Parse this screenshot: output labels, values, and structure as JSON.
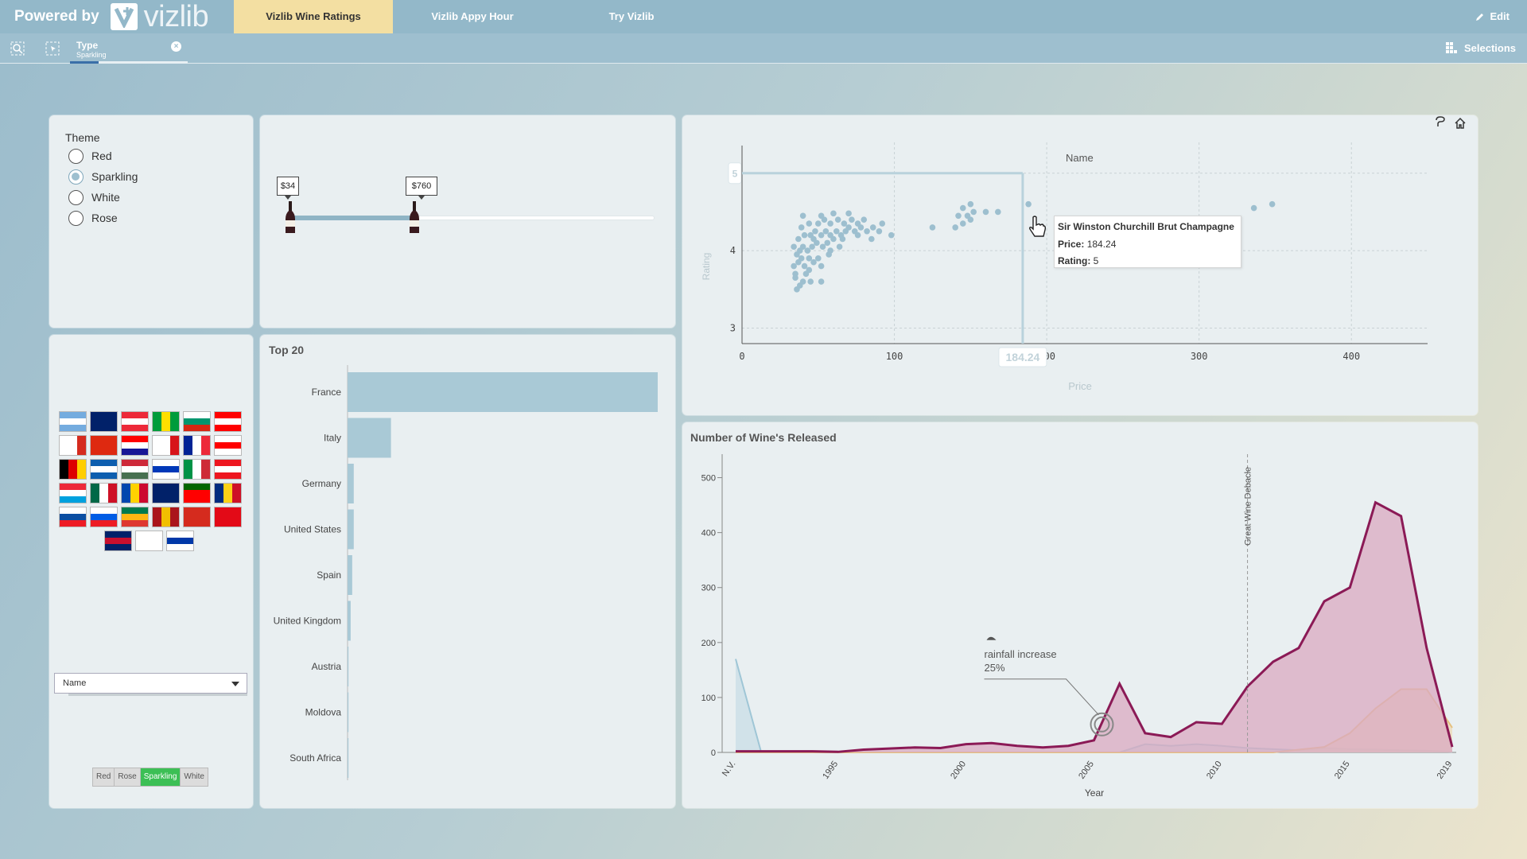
{
  "header": {
    "powered_by": "Powered by",
    "brand": "vizlib",
    "tabs": [
      {
        "label": "Vizlib Wine Ratings",
        "active": true
      },
      {
        "label": "Vizlib Appy Hour",
        "active": false
      },
      {
        "label": "Try Vizlib",
        "active": false
      }
    ],
    "edit_label": "Edit"
  },
  "selection_bar": {
    "chip_field": "Type",
    "chip_value": "Sparkling",
    "selections_label": "Selections"
  },
  "theme_panel": {
    "title": "Theme",
    "options": [
      {
        "label": "Red",
        "selected": false
      },
      {
        "label": "Sparkling",
        "selected": true
      },
      {
        "label": "White",
        "selected": false
      },
      {
        "label": "Rose",
        "selected": false
      }
    ]
  },
  "price_slider": {
    "low_label": "$34",
    "high_label": "$760",
    "low_fraction": 0.0,
    "high_fraction": 0.34
  },
  "flags_panel": {
    "countries": [
      "Argentina",
      "Australia",
      "Austria",
      "Brazil",
      "Bulgaria",
      "Canada",
      "Chile",
      "China",
      "Croatia",
      "Czech Republic",
      "France",
      "Georgia",
      "Germany",
      "Greece",
      "Hungary",
      "Israel",
      "Italy",
      "Lebanon",
      "Luxembourg",
      "Mexico",
      "Moldova",
      "New Zealand",
      "Portugal",
      "Romania",
      "Slovakia",
      "Slovenia",
      "South Africa",
      "Spain",
      "Switzerland",
      "Turkey",
      "United Kingdom",
      "",
      "Uruguay"
    ],
    "dropdown_label": "Name",
    "type_buttons": [
      {
        "label": "Red",
        "active": false
      },
      {
        "label": "Rose",
        "active": false
      },
      {
        "label": "Sparkling",
        "active": true
      },
      {
        "label": "White",
        "active": false
      }
    ]
  },
  "top20": {
    "title": "Top 20",
    "chart_data": {
      "type": "bar",
      "orientation": "horizontal",
      "categories": [
        "France",
        "Italy",
        "Germany",
        "United States",
        "Spain",
        "United Kingdom",
        "Austria",
        "Moldova",
        "South Africa"
      ],
      "values": [
        100,
        14,
        2,
        2,
        1.5,
        1,
        0.3,
        0.3,
        0.3
      ],
      "bar_color": "#a9c9d6"
    }
  },
  "scatter": {
    "legend_label": "Name",
    "chart_data": {
      "type": "scatter",
      "xlabel": "Price",
      "ylabel": "Rating",
      "xlim": [
        0,
        450
      ],
      "ylim": [
        2.8,
        5.5
      ],
      "x_ticks": [
        "0",
        "100",
        "200",
        "300",
        "400"
      ],
      "y_ticks": [
        "3",
        "4",
        "5"
      ],
      "crosshair": {
        "x": 184.24,
        "y": 5,
        "x_label": "184.24",
        "y_label": "5"
      },
      "points": [
        [
          36,
          3.5
        ],
        [
          38,
          3.55
        ],
        [
          40,
          3.6
        ],
        [
          42,
          3.7
        ],
        [
          45,
          3.6
        ],
        [
          35,
          3.7
        ],
        [
          34,
          3.8
        ],
        [
          37,
          3.85
        ],
        [
          39,
          3.9
        ],
        [
          41,
          3.8
        ],
        [
          44,
          3.75
        ],
        [
          47,
          3.85
        ],
        [
          50,
          3.9
        ],
        [
          52,
          3.8
        ],
        [
          36,
          3.95
        ],
        [
          38,
          4.0
        ],
        [
          40,
          4.05
        ],
        [
          43,
          4.0
        ],
        [
          46,
          4.05
        ],
        [
          49,
          4.1
        ],
        [
          53,
          4.05
        ],
        [
          56,
          4.1
        ],
        [
          60,
          4.15
        ],
        [
          34,
          4.05
        ],
        [
          37,
          4.15
        ],
        [
          41,
          4.2
        ],
        [
          45,
          4.2
        ],
        [
          48,
          4.25
        ],
        [
          52,
          4.2
        ],
        [
          55,
          4.25
        ],
        [
          58,
          4.2
        ],
        [
          62,
          4.25
        ],
        [
          65,
          4.2
        ],
        [
          68,
          4.25
        ],
        [
          70,
          4.3
        ],
        [
          74,
          4.25
        ],
        [
          78,
          4.3
        ],
        [
          82,
          4.25
        ],
        [
          39,
          4.3
        ],
        [
          44,
          4.35
        ],
        [
          50,
          4.35
        ],
        [
          54,
          4.4
        ],
        [
          58,
          4.35
        ],
        [
          63,
          4.4
        ],
        [
          67,
          4.35
        ],
        [
          72,
          4.4
        ],
        [
          76,
          4.35
        ],
        [
          80,
          4.4
        ],
        [
          86,
          4.3
        ],
        [
          90,
          4.25
        ],
        [
          40,
          4.45
        ],
        [
          52,
          4.45
        ],
        [
          60,
          4.48
        ],
        [
          70,
          4.48
        ],
        [
          92,
          4.35
        ],
        [
          98,
          4.2
        ],
        [
          35,
          3.65
        ],
        [
          44,
          3.9
        ],
        [
          57,
          3.95
        ],
        [
          64,
          4.05
        ],
        [
          52,
          3.6
        ],
        [
          47,
          4.15
        ],
        [
          58,
          4.0
        ],
        [
          66,
          4.15
        ],
        [
          76,
          4.2
        ],
        [
          85,
          4.15
        ],
        [
          125,
          4.3
        ],
        [
          140,
          4.3
        ],
        [
          142,
          4.45
        ],
        [
          148,
          4.45
        ],
        [
          152,
          4.5
        ],
        [
          160,
          4.5
        ],
        [
          168,
          4.5
        ],
        [
          145,
          4.55
        ],
        [
          150,
          4.6
        ],
        [
          188,
          4.6
        ],
        [
          336,
          4.55
        ],
        [
          348,
          4.6
        ],
        [
          150,
          4.4
        ],
        [
          145,
          4.35
        ]
      ],
      "point_color": "#9dbfcf"
    },
    "tooltip": {
      "name": "Sir Winston Churchill Brut Champagne",
      "price_key": "Price:",
      "price_value": "184.24",
      "rating_key": "Rating:",
      "rating_value": "5"
    }
  },
  "releases": {
    "title": "Number of Wine's Released",
    "chart_data": {
      "type": "area",
      "xlabel": "Year",
      "ylabel": "",
      "ylim": [
        0,
        550
      ],
      "y_ticks": [
        0,
        100,
        200,
        300,
        400,
        500
      ],
      "x_tick_labels": [
        "N.V.",
        "1995",
        "2000",
        "2005",
        "2010",
        "2015",
        "2019"
      ],
      "x": [
        "N.V.",
        1992,
        1993,
        1994,
        1995,
        1996,
        1997,
        1998,
        1999,
        2000,
        2001,
        2002,
        2003,
        2004,
        2005,
        2006,
        2007,
        2008,
        2009,
        2010,
        2011,
        2012,
        2013,
        2014,
        2015,
        2016,
        2017,
        2018,
        2019
      ],
      "series": [
        {
          "name": "",
          "color": "#8b1a56",
          "fill": "#d9a9c0",
          "values": [
            2,
            2,
            2,
            2,
            1,
            5,
            7,
            9,
            8,
            15,
            17,
            12,
            9,
            12,
            22,
            125,
            35,
            28,
            55,
            52,
            120,
            165,
            190,
            275,
            300,
            455,
            430,
            190,
            10
          ]
        },
        {
          "name": "",
          "color": "#e5c180",
          "fill": "#eed9b6",
          "values": [
            0,
            0,
            0,
            0,
            0,
            0,
            0,
            0,
            0,
            0,
            0,
            0,
            0,
            0,
            0,
            0,
            0,
            0,
            0,
            0,
            0,
            0,
            5,
            10,
            35,
            80,
            115,
            115,
            45
          ]
        },
        {
          "name": "",
          "color": "#9fc6d6",
          "fill": "#c8dde6",
          "values": [
            170,
            0,
            0,
            0,
            0,
            0,
            0,
            0,
            0,
            0,
            0,
            0,
            0,
            0,
            0,
            0,
            15,
            12,
            15,
            12,
            8,
            6,
            4,
            8,
            6,
            5,
            4,
            3,
            1
          ]
        }
      ],
      "reference_line": {
        "x": 2011,
        "label": "Great Wine Debacle"
      },
      "annotation": {
        "x": 2005,
        "text": "rainfall increase",
        "value_text": "25%"
      }
    }
  }
}
